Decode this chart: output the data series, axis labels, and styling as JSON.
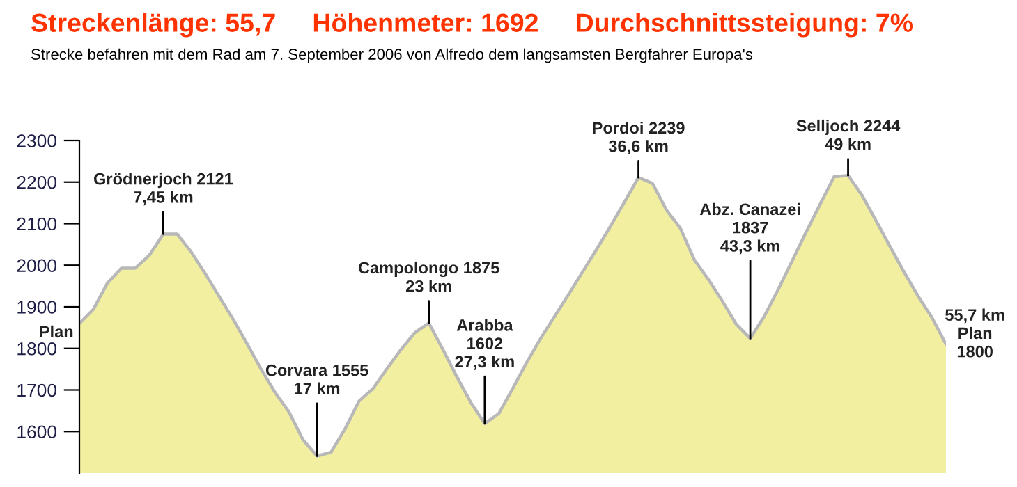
{
  "chart_data": {
    "type": "area",
    "title": "Streckenlänge: 55,7     Höhenmeter: 1692     Durchschnittssteigung: 7%",
    "subtitle": "Strecke befahren mit dem Rad am 7. September 2006 von Alfredo dem langsamsten Bergfahrer Europa's",
    "categories": [
      null,
      null,
      null,
      null,
      null,
      null,
      null,
      null,
      null,
      null,
      null,
      null,
      null,
      null,
      null,
      null,
      null,
      null,
      null,
      null,
      null,
      null,
      null,
      null,
      null,
      null,
      null,
      null,
      null,
      null,
      null,
      null,
      null,
      null,
      null,
      null,
      null,
      null,
      null,
      null,
      null,
      null,
      null,
      null,
      null,
      null,
      null,
      null,
      null,
      null,
      null,
      null,
      null,
      null,
      null,
      null,
      null,
      null,
      null,
      null,
      null,
      null,
      null
    ],
    "series": [
      {
        "color": "#f2f0a0",
        "values": [
          1860,
          1894,
          1957,
          1993,
          1993,
          2024,
          2075,
          2075,
          2032,
          1980,
          1925,
          1870,
          1811,
          1750,
          1694,
          1647,
          1580,
          1541,
          1550,
          1606,
          1673,
          1703,
          1751,
          1797,
          1838,
          1861,
          1798,
          1732,
          1670,
          1619,
          1643,
          1703,
          1766,
          1824,
          1877,
          1930,
          1984,
          2038,
          2094,
          2152,
          2211,
          2197,
          2133,
          2089,
          2013,
          1966,
          1914,
          1858,
          1824,
          1877,
          1942,
          2011,
          2080,
          2147,
          2213,
          2216,
          2168,
          2107,
          2045,
          1984,
          1926,
          1874,
          1810
        ]
      }
    ],
    "ylim": [
      1500,
      2300
    ],
    "yticks": [
      1600,
      1700,
      1800,
      1900,
      2000,
      2100,
      2200,
      2300
    ],
    "tick_labels": "y",
    "grid": false,
    "annotations": [
      "Plan",
      "Grödnerjoch 2121\n7,45 km",
      "Corvara 1555\n17 km",
      "Campolongo 1875\n23 km",
      "Arabba\n1602\n27,3 km",
      "Pordoi 2239\n36,6 km",
      "Abz. Canazei\n1837\n43,3 km",
      "Selljoch 2244\n49 km",
      "55,7 km\nPlan\n1800"
    ]
  }
}
